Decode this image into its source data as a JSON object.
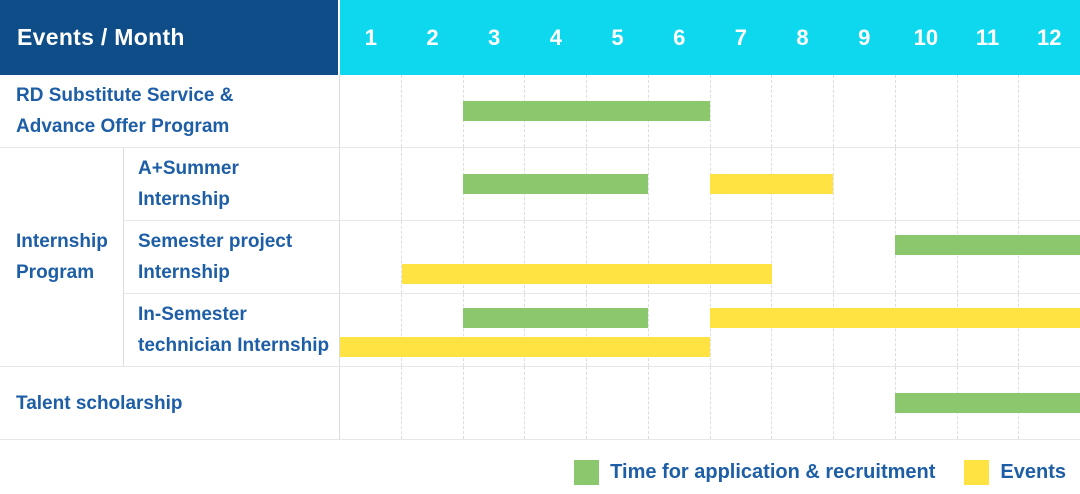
{
  "colors": {
    "header_bg": "#0e4d87",
    "month_header_bg": "#0dd8ee",
    "application": "#8bc76c",
    "events": "#fee343",
    "label_text": "#1d5ea6",
    "header_text": "#ffffff",
    "grid_line": "#e7e7e7"
  },
  "header": {
    "title": "Events / Month",
    "months": [
      "1",
      "2",
      "3",
      "4",
      "5",
      "6",
      "7",
      "8",
      "9",
      "10",
      "11",
      "12"
    ]
  },
  "labels": {
    "rd": {
      "line1": "RD Substitute Service &",
      "line2": "Advance Offer Program"
    },
    "internship_group": {
      "line1": "Internship",
      "line2": "Program"
    },
    "a_summer": {
      "line1": "A+Summer",
      "line2": "Internship"
    },
    "semester_project": {
      "line1": "Semester project",
      "line2": "Internship"
    },
    "in_semester": {
      "line1": "In-Semester",
      "line2": "technician Internship"
    },
    "talent": {
      "line1": "Talent scholarship"
    }
  },
  "chart_data": {
    "type": "bar",
    "subtype": "gantt-timeline",
    "x_axis": {
      "label": "Month",
      "ticks": [
        "1",
        "2",
        "3",
        "4",
        "5",
        "6",
        "7",
        "8",
        "9",
        "10",
        "11",
        "12"
      ],
      "range": [
        1,
        12
      ]
    },
    "grid": "dashed-vertical-month-lines",
    "rows": [
      {
        "id": "rd",
        "label": "RD Substitute Service & Advance Offer Program",
        "group": null,
        "bars": [
          {
            "series": "application",
            "start_month": 3,
            "end_month": 6,
            "lane": "center"
          }
        ]
      },
      {
        "id": "a_summer",
        "label": "A+Summer Internship",
        "group": "Internship Program",
        "bars": [
          {
            "series": "application",
            "start_month": 3,
            "end_month": 5,
            "lane": "center"
          },
          {
            "series": "events",
            "start_month": 7,
            "end_month": 8,
            "lane": "center"
          }
        ]
      },
      {
        "id": "semester_project",
        "label": "Semester project Internship",
        "group": "Internship Program",
        "bars": [
          {
            "series": "application",
            "start_month": 10,
            "end_month": 12,
            "lane": "top"
          },
          {
            "series": "events",
            "start_month": 2,
            "end_month": 7,
            "lane": "bottom"
          }
        ]
      },
      {
        "id": "in_semester",
        "label": "In-Semester technician Internship",
        "group": "Internship Program",
        "bars": [
          {
            "series": "application",
            "start_month": 3,
            "end_month": 5,
            "lane": "top"
          },
          {
            "series": "events",
            "start_month": 7,
            "end_month": 12,
            "lane": "top"
          },
          {
            "series": "events",
            "start_month": 1,
            "end_month": 6,
            "lane": "bottom"
          }
        ]
      },
      {
        "id": "talent",
        "label": "Talent scholarship",
        "group": null,
        "bars": [
          {
            "series": "application",
            "start_month": 10,
            "end_month": 12,
            "lane": "center"
          }
        ]
      }
    ],
    "legend": [
      {
        "series": "application",
        "label": "Time for application & recruitment"
      },
      {
        "series": "events",
        "label": "Events"
      }
    ],
    "legend_position": "bottom-right"
  }
}
